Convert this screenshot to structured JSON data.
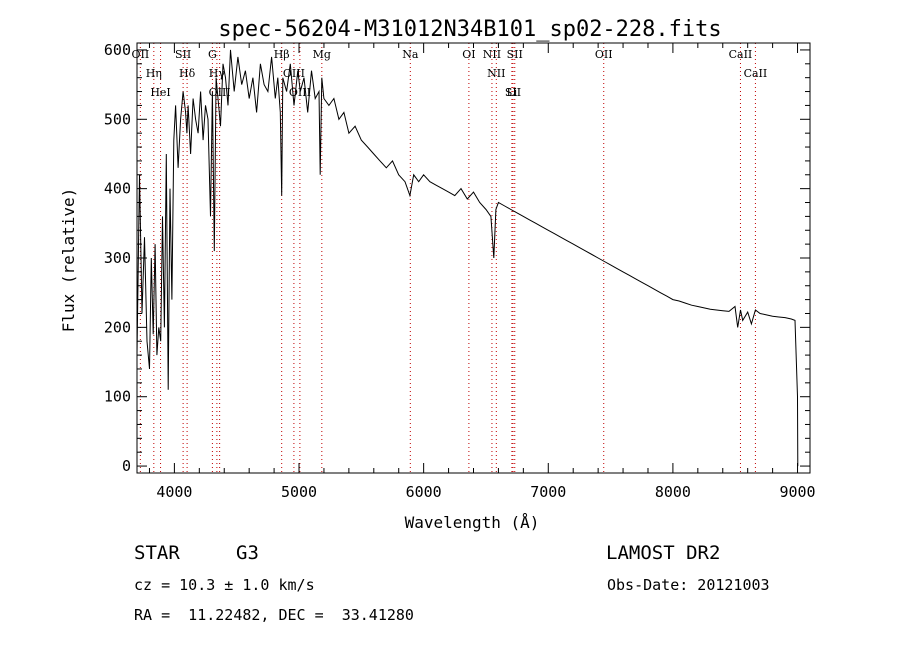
{
  "chart_data": {
    "type": "line",
    "title": "spec-56204-M31012N34B101_sp02-228.fits",
    "xlabel": "Wavelength (Å)",
    "ylabel": "Flux (relative)",
    "xlim": [
      3700,
      9100
    ],
    "ylim": [
      -10,
      610
    ],
    "xticks": [
      4000,
      5000,
      6000,
      7000,
      8000,
      9000
    ],
    "yticks": [
      0,
      100,
      200,
      300,
      400,
      500,
      600
    ],
    "grid": false,
    "series": [
      {
        "x": [
          3700,
          3720,
          3740,
          3760,
          3780,
          3800,
          3815,
          3830,
          3845,
          3860,
          3875,
          3890,
          3905,
          3920,
          3935,
          3950,
          3965,
          3980,
          3995,
          4010,
          4030,
          4050,
          4070,
          4090,
          4100,
          4110,
          4130,
          4150,
          4170,
          4190,
          4210,
          4230,
          4250,
          4270,
          4290,
          4305,
          4320,
          4335,
          4350,
          4370,
          4390,
          4410,
          4430,
          4450,
          4480,
          4510,
          4540,
          4570,
          4600,
          4630,
          4660,
          4690,
          4720,
          4750,
          4780,
          4810,
          4830,
          4850,
          4861,
          4870,
          4900,
          4930,
          4960,
          4990,
          5010,
          5040,
          5070,
          5100,
          5130,
          5160,
          5170,
          5183,
          5200,
          5240,
          5280,
          5320,
          5360,
          5400,
          5450,
          5500,
          5550,
          5600,
          5650,
          5700,
          5750,
          5800,
          5850,
          5890,
          5920,
          5960,
          6000,
          6050,
          6100,
          6150,
          6200,
          6250,
          6300,
          6350,
          6400,
          6450,
          6500,
          6540,
          6563,
          6580,
          6600,
          6650,
          6700,
          6750,
          6800,
          6850,
          6900,
          6950,
          7000,
          7050,
          7100,
          7150,
          7200,
          7250,
          7300,
          7350,
          7400,
          7450,
          7500,
          7550,
          7600,
          7650,
          7700,
          7750,
          7800,
          7850,
          7900,
          7950,
          8000,
          8050,
          8100,
          8150,
          8200,
          8250,
          8300,
          8350,
          8400,
          8450,
          8498,
          8520,
          8542,
          8560,
          8600,
          8630,
          8662,
          8700,
          8750,
          8800,
          8850,
          8900,
          8950,
          8980,
          9000,
          9002
        ],
        "y": [
          160,
          420,
          220,
          330,
          180,
          140,
          300,
          190,
          320,
          160,
          200,
          180,
          360,
          200,
          450,
          110,
          400,
          240,
          470,
          520,
          430,
          500,
          540,
          510,
          480,
          520,
          450,
          530,
          500,
          480,
          540,
          470,
          520,
          500,
          360,
          540,
          310,
          560,
          530,
          490,
          580,
          560,
          520,
          600,
          540,
          590,
          550,
          570,
          530,
          560,
          510,
          580,
          550,
          540,
          590,
          530,
          560,
          510,
          390,
          560,
          540,
          580,
          520,
          570,
          540,
          560,
          510,
          570,
          530,
          540,
          420,
          560,
          530,
          520,
          530,
          500,
          510,
          480,
          490,
          470,
          460,
          450,
          440,
          430,
          440,
          420,
          410,
          390,
          420,
          410,
          420,
          410,
          405,
          400,
          395,
          390,
          400,
          385,
          395,
          380,
          370,
          360,
          300,
          370,
          380,
          375,
          370,
          365,
          360,
          355,
          350,
          345,
          340,
          335,
          330,
          325,
          320,
          315,
          310,
          305,
          300,
          295,
          290,
          285,
          280,
          275,
          270,
          265,
          260,
          255,
          250,
          245,
          240,
          238,
          235,
          232,
          230,
          228,
          226,
          225,
          224,
          223,
          230,
          200,
          225,
          210,
          222,
          205,
          225,
          220,
          218,
          216,
          215,
          214,
          212,
          210,
          100,
          0
        ]
      }
    ],
    "reference_lines": [
      {
        "label": "OII",
        "x": 3727
      },
      {
        "label": "Hη",
        "x": 3835
      },
      {
        "label": "HeI",
        "x": 3889
      },
      {
        "label": "SII",
        "x": 4070
      },
      {
        "label": "Hδ",
        "x": 4102
      },
      {
        "label": "G",
        "x": 4305
      },
      {
        "label": "Hγ",
        "x": 4341
      },
      {
        "label": "OIII",
        "x": 4363
      },
      {
        "label": "Hβ",
        "x": 4861
      },
      {
        "label": "OIII",
        "x": 4959
      },
      {
        "label": "OIII",
        "x": 5007
      },
      {
        "label": "Mg",
        "x": 5183
      },
      {
        "label": "Na",
        "x": 5893
      },
      {
        "label": "OI",
        "x": 6363
      },
      {
        "label": "NII",
        "x": 6548
      },
      {
        "label": "NII",
        "x": 6583
      },
      {
        "label": "SII",
        "x": 6717
      },
      {
        "label": "Li",
        "x": 6708
      },
      {
        "label": "SII",
        "x": 6731
      },
      {
        "label": "OII",
        "x": 7445
      },
      {
        "label": "CaII",
        "x": 8542
      },
      {
        "label": "CaII",
        "x": 8662
      }
    ]
  },
  "info": {
    "object_class": "STAR",
    "subclass": "G3",
    "survey": "LAMOST DR2",
    "redshift": "cz = 10.3 ± 1.0 km/s",
    "obs_date": "Obs-Date: 20121003",
    "coords": "RA =  11.22482, DEC =  33.41280"
  }
}
